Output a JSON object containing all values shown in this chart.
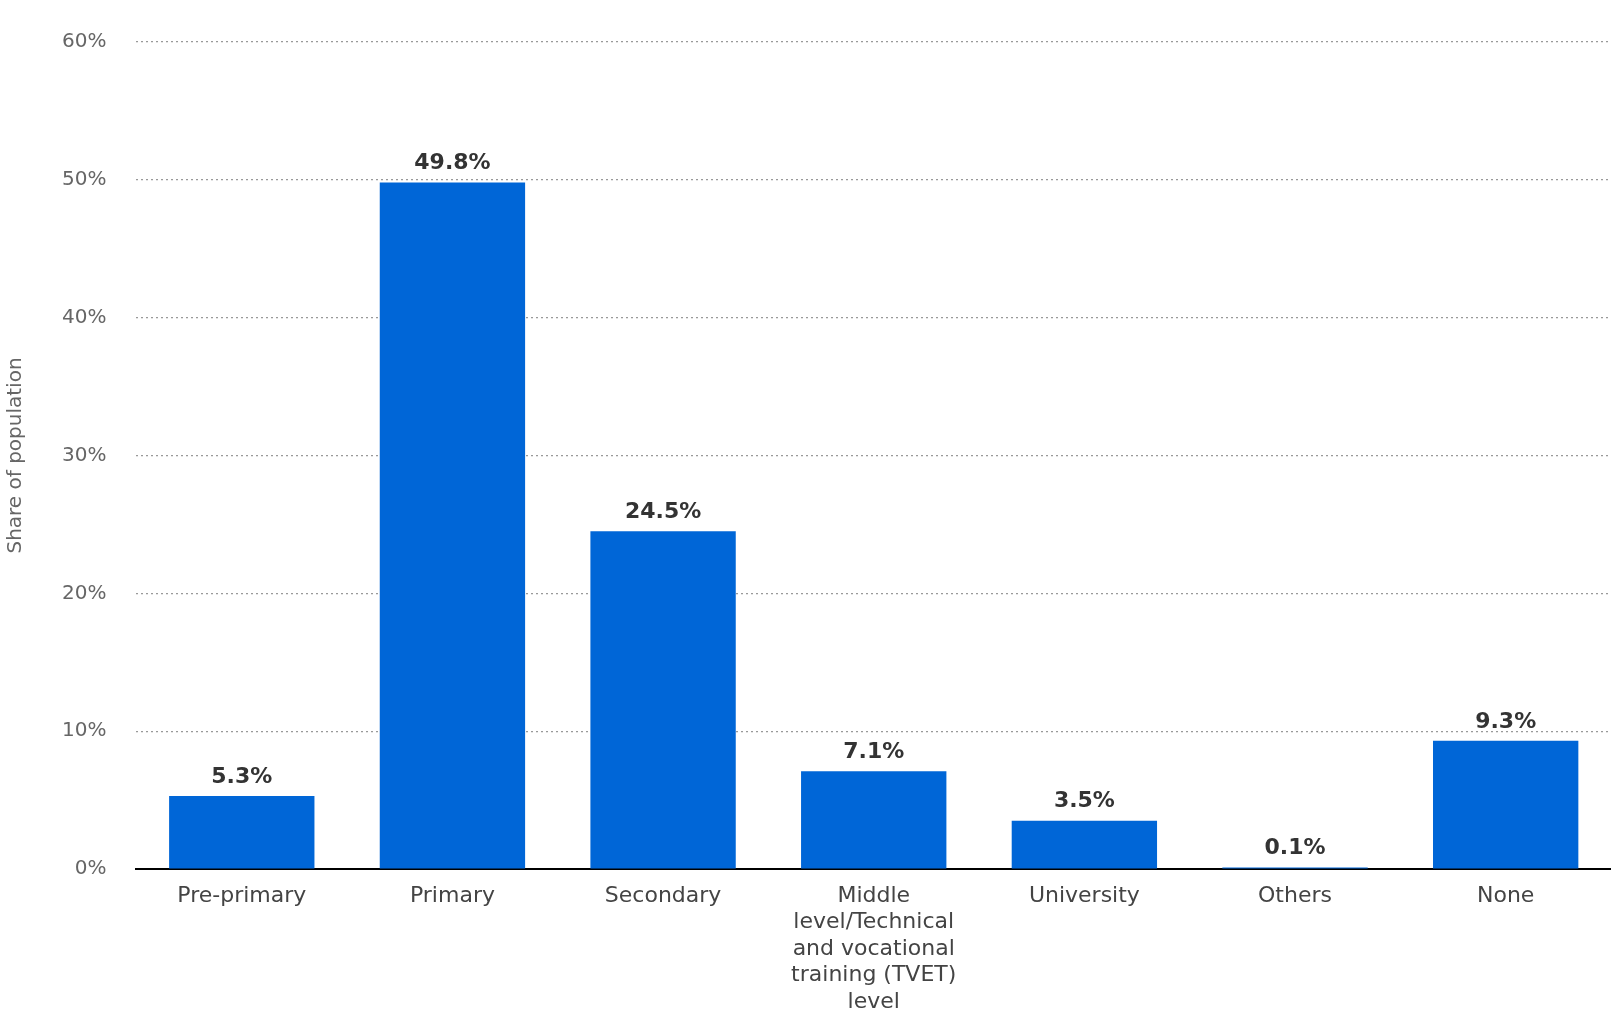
{
  "chart_data": {
    "type": "bar",
    "ylabel": "Share of population",
    "categories": [
      "Pre-primary",
      "Primary",
      "Secondary",
      "Middle level/Technical and vocational training (TVET) level",
      "University",
      "Others",
      "None"
    ],
    "values": [
      5.3,
      49.8,
      24.5,
      7.1,
      3.5,
      0.1,
      9.3
    ],
    "value_labels": [
      "5.3%",
      "49.8%",
      "24.5%",
      "7.1%",
      "3.5%",
      "0.1%",
      "9.3%"
    ],
    "color": "#0066d7",
    "ylim": [
      0,
      60
    ],
    "yticks": [
      {
        "value": 0,
        "label": "0%"
      },
      {
        "value": 10,
        "label": "10%"
      },
      {
        "value": 20,
        "label": "20%"
      },
      {
        "value": 30,
        "label": "30%"
      },
      {
        "value": 40,
        "label": "40%"
      },
      {
        "value": 50,
        "label": "50%"
      },
      {
        "value": 60,
        "label": "60%"
      }
    ],
    "grid": "y",
    "legend": false
  }
}
